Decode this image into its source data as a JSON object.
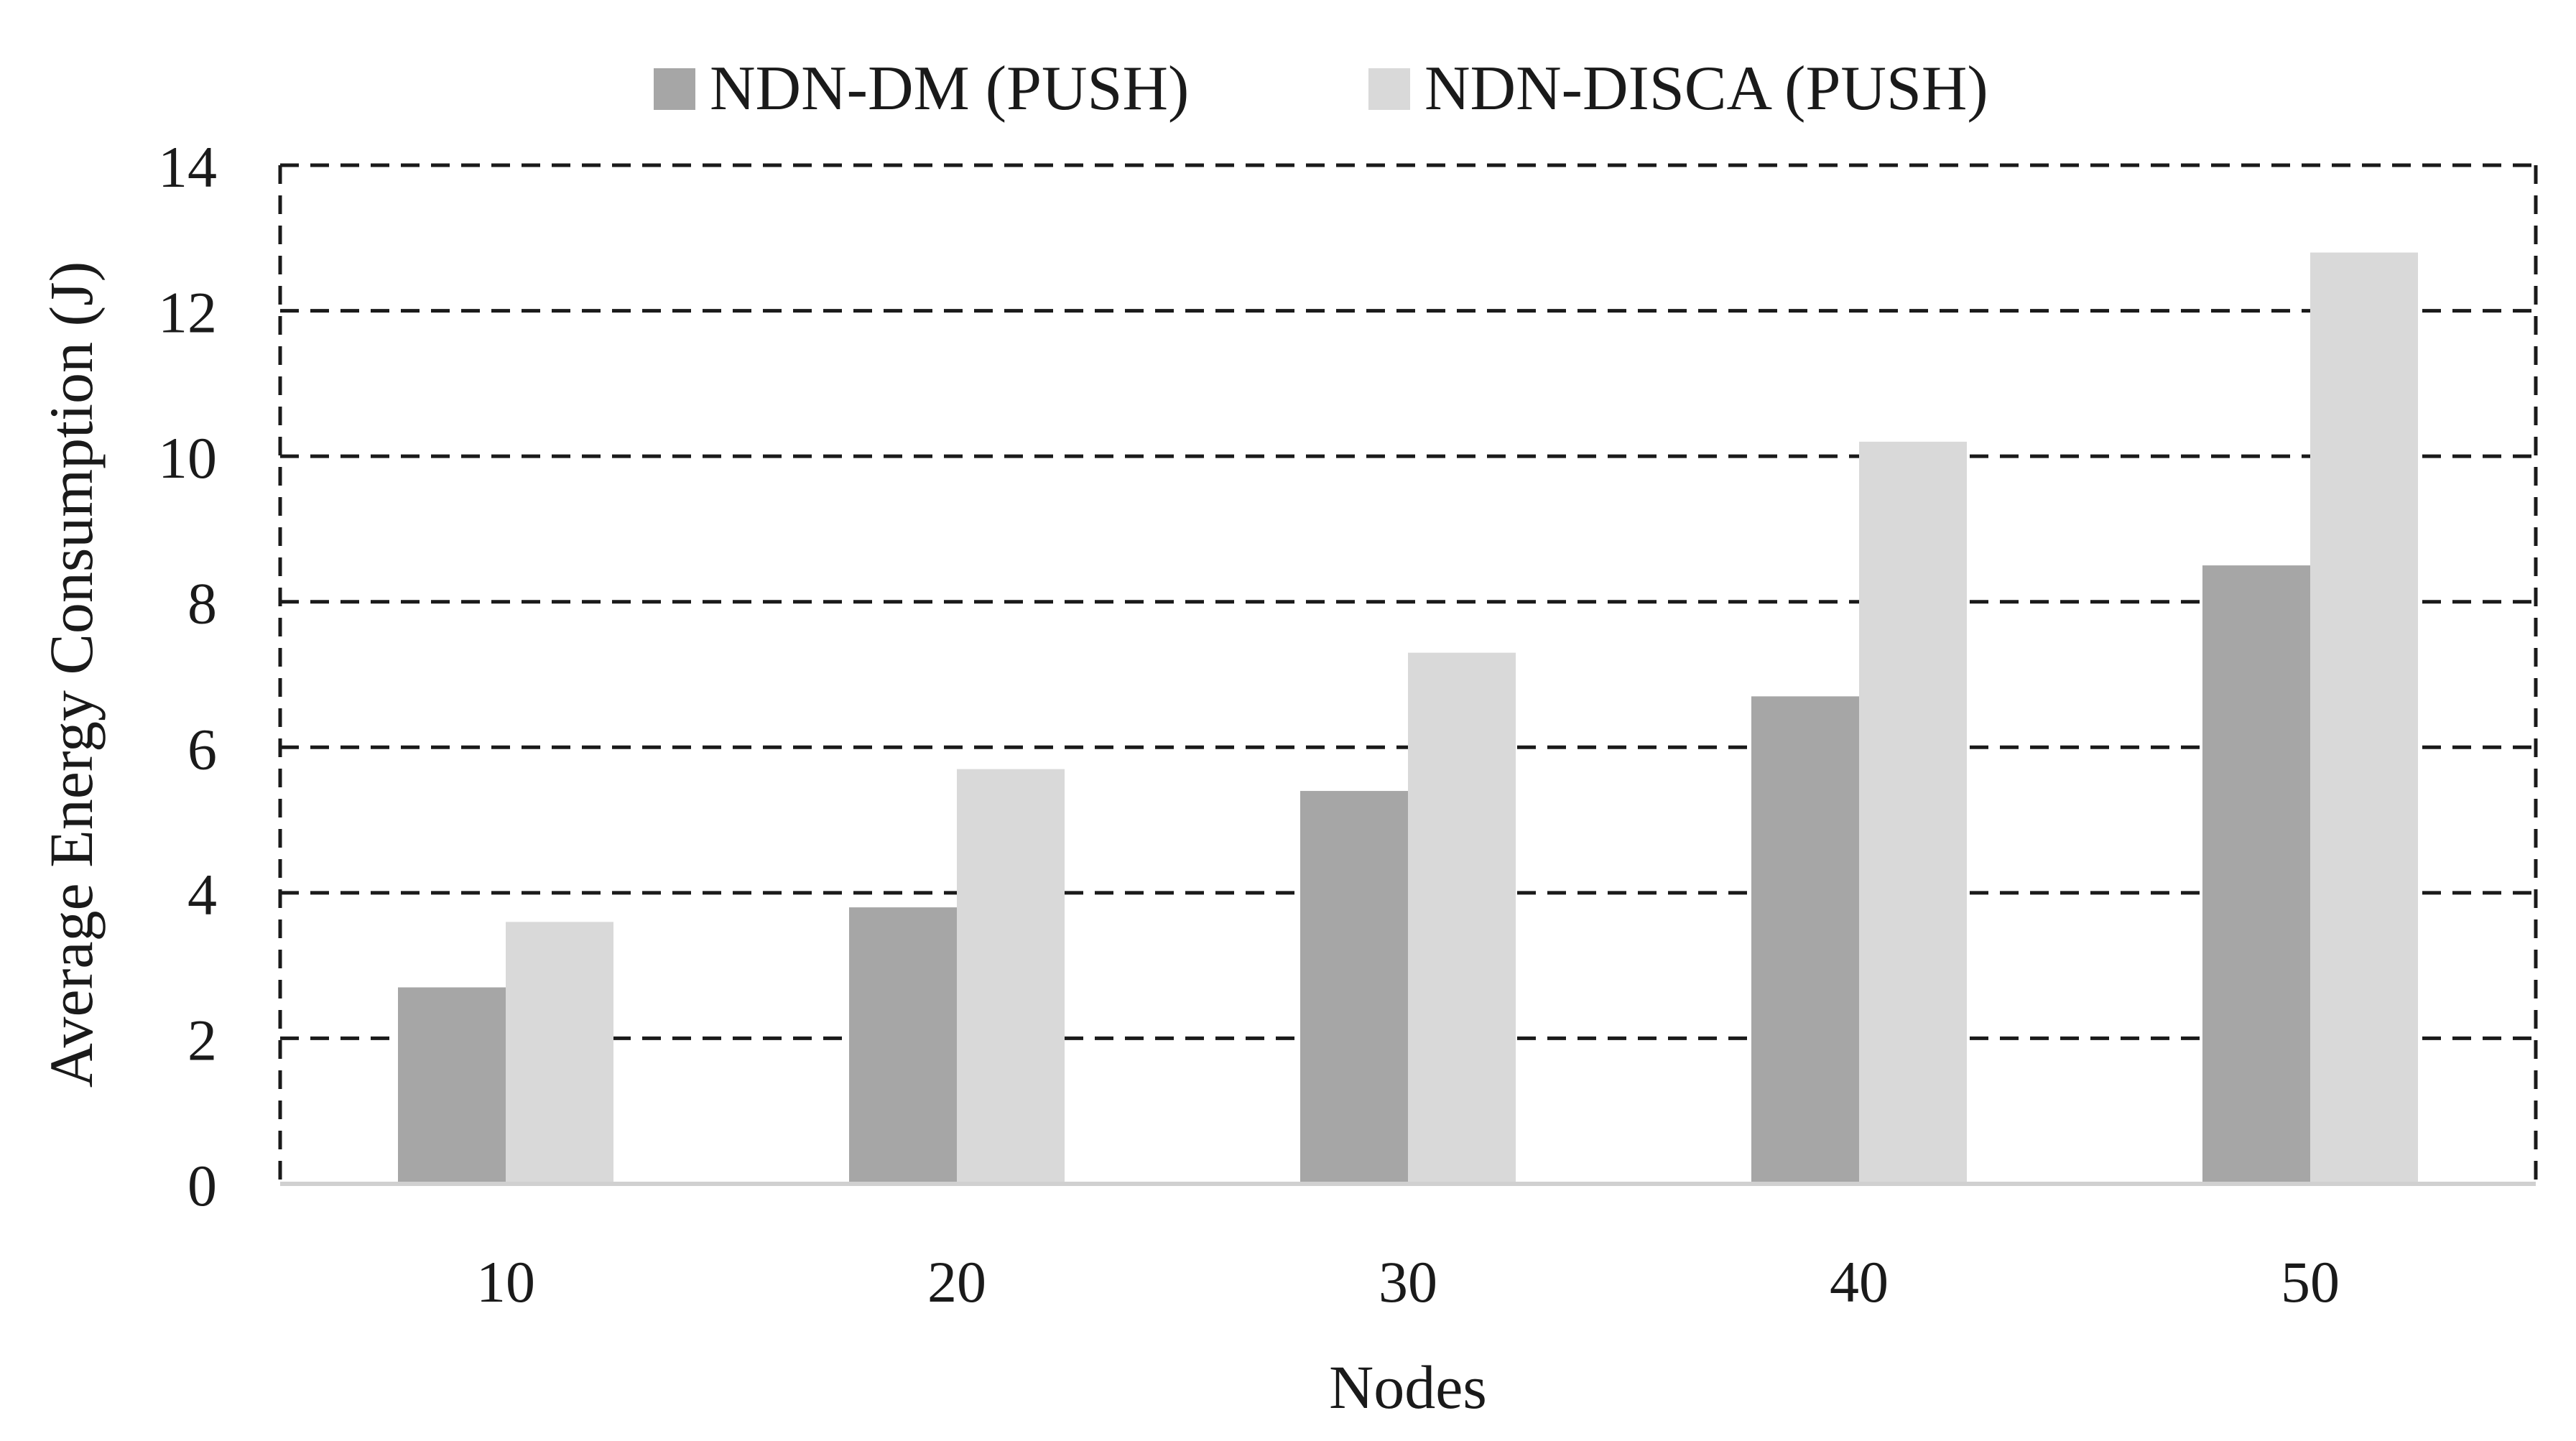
{
  "chart_data": {
    "type": "bar",
    "title": "",
    "xlabel": "Nodes",
    "ylabel": "Average Energy Consumption (J)",
    "categories": [
      "10",
      "20",
      "30",
      "40",
      "50"
    ],
    "series": [
      {
        "name": "NDN-DM (PUSH)",
        "values": [
          2.7,
          3.8,
          5.4,
          6.7,
          8.5
        ],
        "color": "#a6a6a6"
      },
      {
        "name": "NDN-DISCA (PUSH)",
        "values": [
          3.6,
          5.7,
          7.3,
          10.2,
          12.8
        ],
        "color": "#d9d9d9"
      }
    ],
    "ylim": [
      0,
      14
    ],
    "yticks": [
      "0",
      "2",
      "4",
      "6",
      "8",
      "10",
      "12",
      "14"
    ],
    "grid": true,
    "grid_style": "dashed",
    "legend_position": "top-center"
  }
}
